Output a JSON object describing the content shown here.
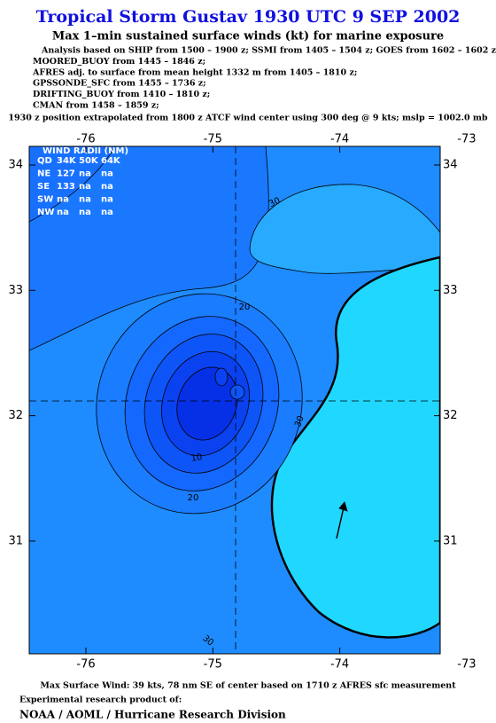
{
  "header": {
    "title": "Tropical Storm Gustav 1930 UTC 9 SEP 2002",
    "subtitle": "Max 1–min sustained surface winds (kt) for marine exposure",
    "analysis": [
      "Analysis based on  SHIP from 1500 – 1900 z;  SSMI from 1405 – 1504 z;  GOES from 1602 – 1602 z;",
      "MOORED_BUOY from 1445 – 1846 z;",
      "AFRES adj. to surface from mean height 1332 m from 1405 – 1810 z;",
      "GPSSONDE_SFC from 1455 – 1736 z;",
      "DRIFTING_BUOY from 1410 – 1810 z;",
      "CMAN from 1458 – 1859 z;"
    ],
    "position": "1930 z position extrapolated from 1800 z ATCF wind center using 300 deg @ 9 kts; mslp = 1002.0 mb"
  },
  "map": {
    "lon_ticks": [
      -76,
      -75,
      -74,
      -73
    ],
    "lat_ticks": [
      34,
      33,
      32,
      31
    ],
    "wind_radii": {
      "title": "WIND RADII (NM)",
      "rows": [
        [
          "QD",
          "34K",
          "50K",
          "64K"
        ],
        [
          "NE",
          "127",
          "na",
          "na"
        ],
        [
          "SE",
          "133",
          "na",
          "na"
        ],
        [
          "SW",
          "na",
          "na",
          "na"
        ],
        [
          "NW",
          "na",
          "na",
          "na"
        ]
      ]
    },
    "contour_labels": [
      30,
      20,
      10,
      20,
      30,
      30
    ]
  },
  "footer": {
    "max_wind": "Max Surface Wind: 39 kts, 78 nm SE of center based on 1710 z AFRES sfc measurement",
    "note": "Experimental research product of:",
    "org": "NOAA / AOML / Hurricane Research Division"
  }
}
